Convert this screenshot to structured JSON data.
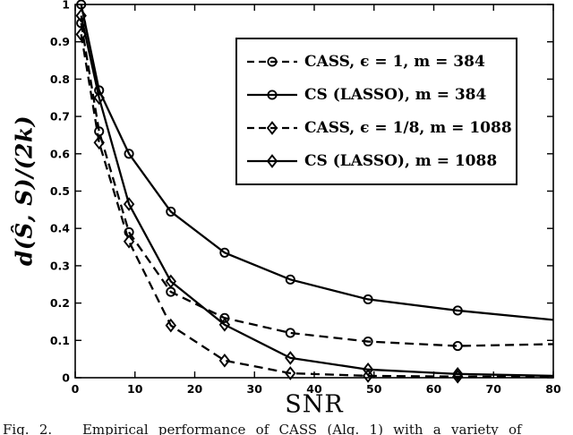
{
  "figure": {
    "xlabel": "SNR",
    "ylabel": "d(Ŝ, S)/(2k)",
    "caption": "Fig. 2.   Empirical performance of CASS (Alg. 1) with a variety of"
  },
  "chart_data": {
    "type": "line",
    "title": "",
    "xlabel": "SNR",
    "ylabel": "d(Ŝ, S)/(2k)",
    "xlim": [
      0,
      80
    ],
    "ylim": [
      0,
      1
    ],
    "xticks": [
      0,
      10,
      20,
      30,
      40,
      50,
      60,
      70,
      80
    ],
    "yticks": [
      0,
      0.1,
      0.2,
      0.3,
      0.4,
      0.5,
      0.6,
      0.7,
      0.8,
      0.9,
      1
    ],
    "grid": false,
    "legend_position": "upper-right-inside-box",
    "colors": {
      "line": "#000000",
      "background": "#ffffff"
    },
    "x": [
      1,
      4,
      9,
      16,
      25,
      36,
      49,
      64,
      80
    ],
    "marker_note": "markers drawn at every x except the final point at SNR=80 (line only)",
    "series": [
      {
        "id": "cass-e1-m384",
        "name": "CASS, ϵ = 1, m = 384",
        "line": "dashed",
        "marker": "circle",
        "values": [
          0.95,
          0.66,
          0.39,
          0.23,
          0.16,
          0.12,
          0.097,
          0.085,
          0.09
        ]
      },
      {
        "id": "cs-lasso-m384",
        "name": "CS (LASSO), m = 384",
        "line": "solid",
        "marker": "circle",
        "values": [
          1.0,
          0.77,
          0.6,
          0.445,
          0.335,
          0.263,
          0.21,
          0.18,
          0.155
        ]
      },
      {
        "id": "cass-e18-m1088",
        "name": "CASS, ϵ = 1/8, m = 1088",
        "line": "dashed",
        "marker": "diamond",
        "values": [
          0.92,
          0.63,
          0.365,
          0.14,
          0.046,
          0.012,
          0.005,
          0.003,
          0.002
        ]
      },
      {
        "id": "cs-lasso-m1088",
        "name": "CS (LASSO), m = 1088",
        "line": "solid",
        "marker": "diamond",
        "values": [
          0.97,
          0.75,
          0.465,
          0.258,
          0.142,
          0.053,
          0.022,
          0.01,
          0.005
        ]
      }
    ]
  }
}
